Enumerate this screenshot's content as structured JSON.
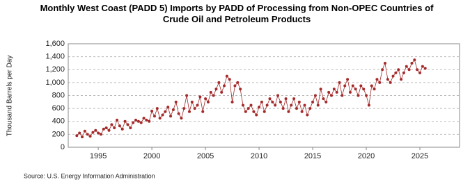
{
  "chart_data": {
    "type": "line",
    "title": "Monthly West Coast (PADD 5) Imports by PADD of Processing from Non-OPEC Countries of Crude Oil and Petroleum Products",
    "y_label": "Thousand Barrels per Day",
    "source": "Source: U.S. Energy Information Administration",
    "xlim": [
      1992.2,
      2028.7
    ],
    "xticks": [
      1995,
      2000,
      2005,
      2010,
      2015,
      2020,
      2025
    ],
    "ylim": [
      0,
      1600
    ],
    "yticks": [
      0,
      200,
      400,
      600,
      800,
      {
        "value": 1000,
        "label": "1,000"
      },
      {
        "value": 1200,
        "label": "1,200"
      },
      {
        "value": 1400,
        "label": "1,400"
      },
      {
        "value": 1600,
        "label": "1,600"
      }
    ],
    "grid": true,
    "series": [
      {
        "name": "West Coast (PADD 5) Imports",
        "color": "#a52a2a",
        "x": [
          1993,
          1993.25,
          1993.5,
          1993.75,
          1994,
          1994.25,
          1994.5,
          1994.75,
          1995,
          1995.25,
          1995.5,
          1995.75,
          1996,
          1996.25,
          1996.5,
          1996.75,
          1997,
          1997.25,
          1997.5,
          1997.75,
          1998,
          1998.25,
          1998.5,
          1998.75,
          1999,
          1999.25,
          1999.5,
          1999.75,
          2000,
          2000.25,
          2000.5,
          2000.75,
          2001,
          2001.25,
          2001.5,
          2001.75,
          2002,
          2002.25,
          2002.5,
          2002.75,
          2003,
          2003.25,
          2003.5,
          2003.75,
          2004,
          2004.25,
          2004.5,
          2004.75,
          2005,
          2005.25,
          2005.5,
          2005.75,
          2006,
          2006.25,
          2006.5,
          2006.75,
          2007,
          2007.25,
          2007.5,
          2007.75,
          2008,
          2008.25,
          2008.5,
          2008.75,
          2009,
          2009.25,
          2009.5,
          2009.75,
          2010,
          2010.25,
          2010.5,
          2010.75,
          2011,
          2011.25,
          2011.5,
          2011.75,
          2012,
          2012.25,
          2012.5,
          2012.75,
          2013,
          2013.25,
          2013.5,
          2013.75,
          2014,
          2014.25,
          2014.5,
          2014.75,
          2015,
          2015.25,
          2015.5,
          2015.75,
          2016,
          2016.25,
          2016.5,
          2016.75,
          2017,
          2017.25,
          2017.5,
          2017.75,
          2018,
          2018.25,
          2018.5,
          2018.75,
          2019,
          2019.25,
          2019.5,
          2019.75,
          2020,
          2020.25,
          2020.5,
          2020.75,
          2021,
          2021.25,
          2021.5,
          2021.75,
          2022,
          2022.25,
          2022.5,
          2022.75,
          2023,
          2023.25,
          2023.5,
          2023.75,
          2024,
          2024.25,
          2024.5,
          2024.75,
          2025,
          2025.25,
          2025.5
        ],
        "values": [
          180,
          220,
          160,
          250,
          200,
          170,
          230,
          260,
          220,
          200,
          280,
          300,
          260,
          350,
          300,
          420,
          330,
          280,
          400,
          350,
          300,
          380,
          420,
          400,
          380,
          450,
          420,
          400,
          560,
          480,
          600,
          450,
          500,
          550,
          620,
          480,
          580,
          700,
          520,
          450,
          600,
          800,
          550,
          700,
          600,
          650,
          780,
          550,
          750,
          700,
          850,
          800,
          900,
          1000,
          850,
          950,
          1100,
          1050,
          700,
          950,
          1000,
          900,
          650,
          550,
          600,
          650,
          550,
          500,
          620,
          700,
          550,
          650,
          750,
          700,
          650,
          800,
          700,
          600,
          750,
          550,
          650,
          750,
          600,
          700,
          550,
          650,
          500,
          600,
          700,
          800,
          650,
          900,
          750,
          700,
          850,
          800,
          900,
          850,
          1000,
          800,
          950,
          1050,
          850,
          950,
          900,
          800,
          950,
          900,
          800,
          650,
          950,
          900,
          1050,
          1000,
          1200,
          1300,
          1050,
          1000,
          1100,
          1150,
          1200,
          1050,
          1150,
          1250,
          1200,
          1300,
          1350,
          1200,
          1150,
          1250,
          1220
        ]
      }
    ]
  }
}
